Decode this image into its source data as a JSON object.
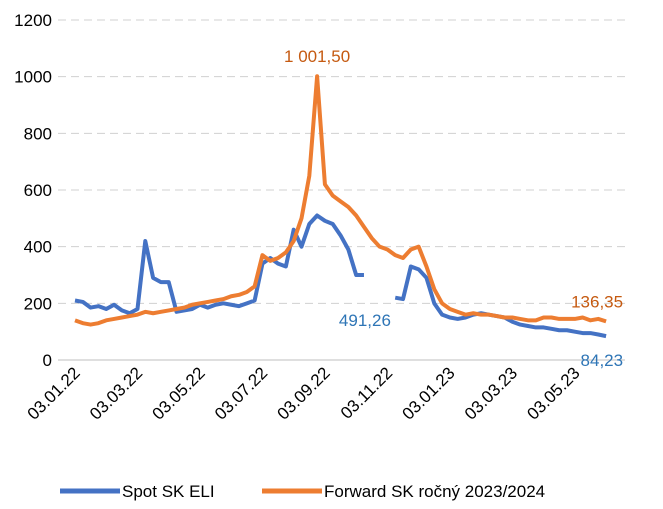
{
  "chart_data": {
    "type": "line",
    "categories": [
      "03.01.22",
      null,
      null,
      null,
      null,
      null,
      null,
      null,
      "03.03.22",
      null,
      null,
      null,
      null,
      null,
      null,
      null,
      "03.05.22",
      null,
      null,
      null,
      null,
      null,
      null,
      null,
      "03.07.22",
      null,
      null,
      null,
      null,
      null,
      null,
      null,
      "03.09.22",
      null,
      null,
      null,
      null,
      null,
      null,
      null,
      "03.11.22",
      null,
      null,
      null,
      null,
      null,
      null,
      null,
      "03.01.23",
      null,
      null,
      null,
      null,
      null,
      null,
      null,
      "03.03.23",
      null,
      null,
      null,
      null,
      null,
      null,
      null,
      "03.05.23",
      null,
      null,
      null,
      null
    ],
    "series": [
      {
        "name": "Spot SK ELI",
        "color": "#4472c4",
        "values": [
          210,
          205,
          185,
          190,
          180,
          195,
          175,
          165,
          180,
          420,
          290,
          275,
          275,
          170,
          175,
          180,
          195,
          185,
          195,
          200,
          195,
          190,
          200,
          210,
          340,
          360,
          340,
          330,
          460,
          400,
          480,
          510,
          491.26,
          480,
          440,
          390,
          300,
          300,
          null,
          null,
          null,
          220,
          215,
          330,
          320,
          290,
          200,
          160,
          150,
          145,
          150,
          160,
          165,
          160,
          155,
          150,
          135,
          125,
          120,
          115,
          115,
          110,
          105,
          105,
          100,
          95,
          95,
          90,
          84.23
        ],
        "value_labels": [
          null,
          null,
          null,
          null,
          null,
          null,
          null,
          null,
          null,
          null,
          null,
          null,
          null,
          null,
          null,
          null,
          null,
          null,
          null,
          null,
          null,
          null,
          null,
          null,
          null,
          null,
          null,
          null,
          null,
          null,
          null,
          null,
          "491,26",
          null,
          null,
          null,
          null,
          null,
          null,
          null,
          null,
          null,
          null,
          null,
          null,
          null,
          null,
          null,
          null,
          null,
          null,
          null,
          null,
          null,
          null,
          null,
          null,
          null,
          null,
          null,
          null,
          null,
          null,
          null,
          null,
          null,
          null,
          null,
          "84,23"
        ]
      },
      {
        "name": "Forward SK ročný 2023/2024",
        "color": "#ed7d31",
        "values": [
          140,
          130,
          125,
          130,
          140,
          145,
          150,
          155,
          160,
          170,
          165,
          170,
          175,
          180,
          185,
          195,
          200,
          205,
          210,
          215,
          225,
          230,
          240,
          260,
          370,
          350,
          360,
          380,
          420,
          500,
          650,
          1001.5,
          620,
          580,
          560,
          540,
          510,
          470,
          430,
          400,
          390,
          370,
          360,
          390,
          400,
          330,
          250,
          200,
          180,
          170,
          160,
          165,
          160,
          160,
          155,
          150,
          150,
          145,
          140,
          140,
          150,
          150,
          145,
          145,
          145,
          150,
          140,
          145,
          136.35
        ],
        "value_labels": [
          null,
          null,
          null,
          null,
          null,
          null,
          null,
          null,
          null,
          null,
          null,
          null,
          null,
          null,
          null,
          null,
          null,
          null,
          null,
          null,
          null,
          null,
          null,
          null,
          null,
          null,
          null,
          null,
          null,
          null,
          null,
          "1 001,50",
          null,
          null,
          null,
          null,
          null,
          null,
          null,
          null,
          null,
          null,
          null,
          null,
          null,
          null,
          null,
          null,
          null,
          null,
          null,
          null,
          null,
          null,
          null,
          null,
          null,
          null,
          null,
          null,
          null,
          null,
          null,
          null,
          null,
          null,
          null,
          null,
          "136,35"
        ]
      }
    ],
    "ylim": [
      0,
      1200
    ],
    "yticks": [
      0,
      200,
      400,
      600,
      800,
      1000,
      1200
    ],
    "grid": true,
    "legend": "bottom"
  }
}
